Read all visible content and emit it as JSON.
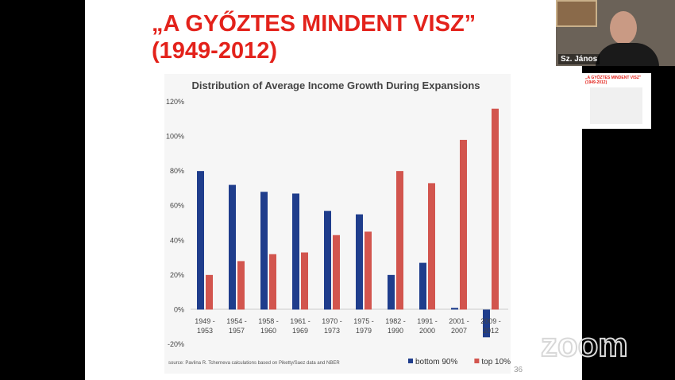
{
  "slide": {
    "title_line1": "„A GYŐZTES MINDENT VISZ”",
    "title_line2": "(1949-2012)",
    "page_number": "36"
  },
  "chart_data": {
    "type": "bar",
    "title": "Distribution of Average Income Growth During Expansions",
    "categories": [
      "1949 - 1953",
      "1954 - 1957",
      "1958 - 1960",
      "1961 - 1969",
      "1970 - 1973",
      "1975 - 1979",
      "1982 - 1990",
      "1991 - 2000",
      "2001 - 2007",
      "2009 - 2012"
    ],
    "series": [
      {
        "name": "bottom 90%",
        "color": "#1f3d8c",
        "values": [
          80,
          72,
          68,
          67,
          57,
          55,
          20,
          27,
          1,
          -16
        ]
      },
      {
        "name": "top 10%",
        "color": "#d2554e",
        "values": [
          20,
          28,
          32,
          33,
          43,
          45,
          80,
          73,
          98,
          116
        ]
      }
    ],
    "ylim": [
      -20,
      120
    ],
    "yticks": [
      {
        "value": -20,
        "label": "-20%"
      },
      {
        "value": 0,
        "label": "0%"
      },
      {
        "value": 20,
        "label": "20%"
      },
      {
        "value": 40,
        "label": "40%"
      },
      {
        "value": 60,
        "label": "60%"
      },
      {
        "value": 80,
        "label": "80%"
      },
      {
        "value": 100,
        "label": "100%"
      },
      {
        "value": 120,
        "label": "120%"
      }
    ],
    "source": "source: Pavlina R. Tcherneva calculations based on Piketty/Saez data and NBER",
    "legend": "bottom-right"
  },
  "zoom": {
    "participant_name": "Sz. János",
    "watermark": "zoom"
  }
}
